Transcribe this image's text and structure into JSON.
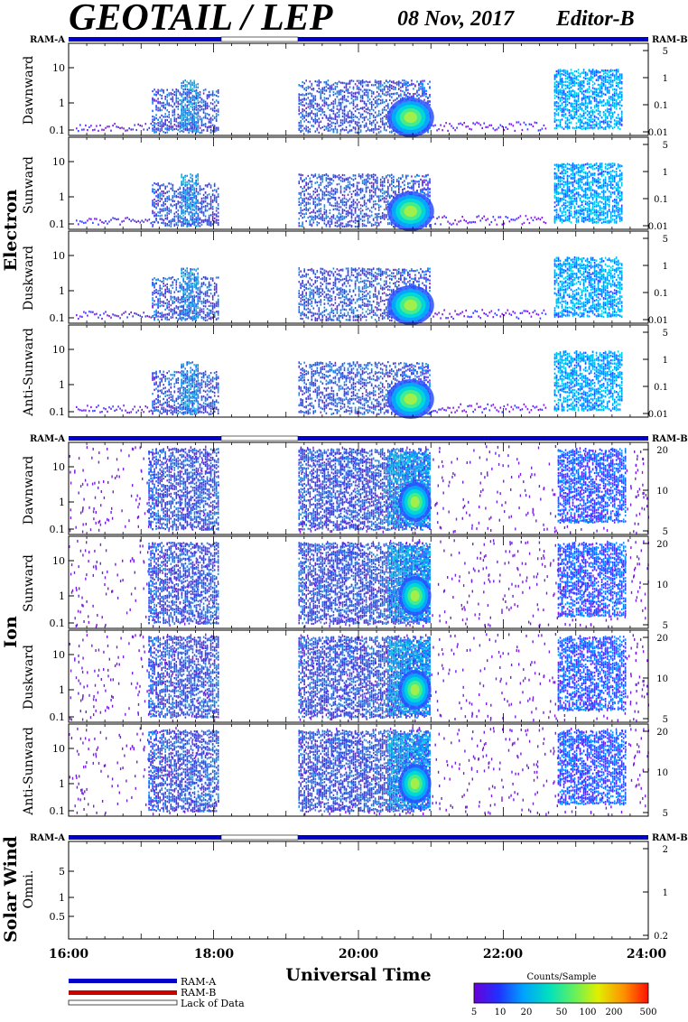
{
  "header": {
    "title": "GEOTAIL / LEP",
    "date": "08 Nov, 2017",
    "editor": "Editor-B"
  },
  "chart_data": {
    "type": "heatmap",
    "time_range": [
      "16:00",
      "24:00"
    ],
    "xlabel": "Universal Time",
    "xticks": [
      "16:00",
      "18:00",
      "20:00",
      "22:00",
      "24:00"
    ],
    "data_gap": [
      "18:05",
      "19:10"
    ],
    "groups": [
      {
        "name": "Electron",
        "ram_left": "RAM-A",
        "ram_right": "RAM-B",
        "left_ticks": [
          "10",
          "1",
          "0.1"
        ],
        "right_ticks": [
          "5",
          "1",
          "0.1",
          "0.01"
        ],
        "panels": [
          {
            "label": "Dawnward"
          },
          {
            "label": "Sunward"
          },
          {
            "label": "Duskward"
          },
          {
            "label": "Anti-Sunward"
          }
        ]
      },
      {
        "name": "Ion",
        "ram_left": "RAM-A",
        "ram_right": "RAM-B",
        "left_ticks": [
          "10",
          "1",
          "0.1"
        ],
        "right_ticks": [
          "20",
          "10",
          "5"
        ],
        "panels": [
          {
            "label": "Dawnward"
          },
          {
            "label": "Sunward"
          },
          {
            "label": "Duskward"
          },
          {
            "label": "Anti-Sunward"
          }
        ]
      },
      {
        "name": "Solar Wind",
        "ram_left": "RAM-A",
        "ram_right": "RAM-B",
        "left_ticks": [
          "5",
          "1",
          "0.5"
        ],
        "right_ticks": [
          "2",
          "1",
          "0.2"
        ],
        "panels": [
          {
            "label": "Omni."
          }
        ]
      }
    ],
    "legend": {
      "ram_a": "RAM-A",
      "ram_b": "RAM-B",
      "lack": "Lack of Data",
      "colorbar_title": "Counts/Sample",
      "colorbar_ticks": [
        "5",
        "10",
        "20",
        "50",
        "100",
        "200",
        "500"
      ]
    },
    "colors": {
      "ram_a": "#0000c8",
      "ram_b": "#cc0000"
    }
  }
}
